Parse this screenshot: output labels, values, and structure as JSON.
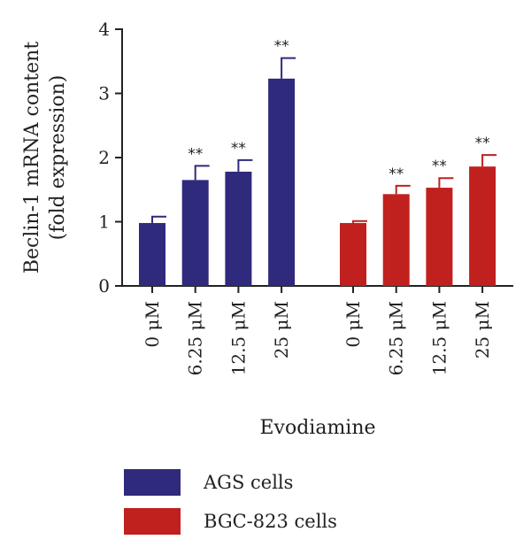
{
  "chart_data": {
    "type": "bar",
    "xlabel": "Evodiamine",
    "ylabel_lines": [
      "Beclin-1 mRNA content",
      "(fold expression)"
    ],
    "ylim": [
      0,
      4
    ],
    "yticks": [
      "0",
      "1",
      "2",
      "3",
      "4"
    ],
    "categories": [
      "0 μM",
      "6.25 μM",
      "12.5 μM",
      "25 μM"
    ],
    "series": [
      {
        "name": "AGS cells",
        "color": "#2f2a7c",
        "values": [
          0.98,
          1.65,
          1.78,
          3.23
        ],
        "errors": [
          0.1,
          0.22,
          0.18,
          0.32
        ],
        "significance": [
          "",
          "**",
          "**",
          "**"
        ]
      },
      {
        "name": "BGC-823 cells",
        "color": "#c0201e",
        "values": [
          0.98,
          1.43,
          1.53,
          1.86
        ],
        "errors": [
          0.03,
          0.13,
          0.15,
          0.18
        ],
        "significance": [
          "",
          "**",
          "**",
          "**"
        ]
      }
    ],
    "legend_position": "bottom-left",
    "grid": false
  }
}
